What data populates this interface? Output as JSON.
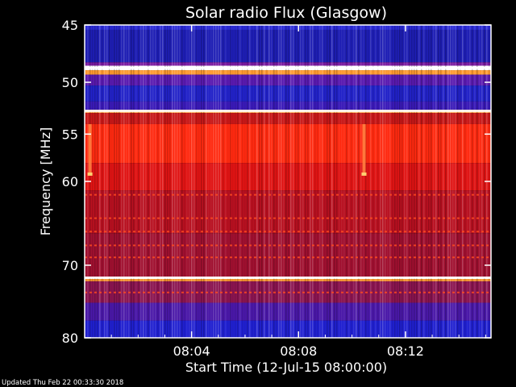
{
  "chart_data": {
    "type": "heatmap",
    "title": "Solar radio Flux (Glasgow)",
    "xlabel": "Start Time (12-Jul-15 08:00:00)",
    "ylabel": "Frequency [MHz]",
    "x_range_minutes": [
      0,
      15.2
    ],
    "x_ticks": [
      {
        "minute": 4,
        "label": "08:04"
      },
      {
        "minute": 8,
        "label": "08:08"
      },
      {
        "minute": 12,
        "label": "08:12"
      }
    ],
    "y_range_mhz": [
      45,
      80
    ],
    "y_scale": "log",
    "y_ticks": [
      {
        "mhz": 45,
        "label": "45"
      },
      {
        "mhz": 50,
        "label": "50"
      },
      {
        "mhz": 55,
        "label": "55"
      },
      {
        "mhz": 60,
        "label": "60"
      },
      {
        "mhz": 70,
        "label": "70"
      },
      {
        "mhz": 80,
        "label": "80"
      }
    ],
    "bands": [
      {
        "from_mhz": 45.0,
        "to_mhz": 45.4,
        "color": "#2b2bd8"
      },
      {
        "from_mhz": 45.4,
        "to_mhz": 48.2,
        "color": "#1e1eb4"
      },
      {
        "from_mhz": 48.2,
        "to_mhz": 48.5,
        "color": "#7a1aa0"
      },
      {
        "from_mhz": 48.5,
        "to_mhz": 48.9,
        "color": "#ffffff"
      },
      {
        "from_mhz": 48.9,
        "to_mhz": 49.3,
        "color": "#ff9a30"
      },
      {
        "from_mhz": 49.3,
        "to_mhz": 50.3,
        "color": "#5a1ab0"
      },
      {
        "from_mhz": 50.3,
        "to_mhz": 51.8,
        "color": "#2222c8"
      },
      {
        "from_mhz": 51.8,
        "to_mhz": 52.6,
        "color": "#3a1ab8"
      },
      {
        "from_mhz": 52.6,
        "to_mhz": 52.9,
        "color": "#ffb060"
      },
      {
        "from_mhz": 52.9,
        "to_mhz": 54.0,
        "color": "#c81818"
      },
      {
        "from_mhz": 54.0,
        "to_mhz": 58.0,
        "color": "#ff2a10"
      },
      {
        "from_mhz": 58.0,
        "to_mhz": 61.0,
        "color": "#e01414"
      },
      {
        "from_mhz": 61.0,
        "to_mhz": 66.0,
        "color": "#b81020"
      },
      {
        "from_mhz": 66.0,
        "to_mhz": 71.5,
        "color": "#a01030"
      },
      {
        "from_mhz": 71.5,
        "to_mhz": 71.8,
        "color": "#ffffff"
      },
      {
        "from_mhz": 71.8,
        "to_mhz": 72.1,
        "color": "#ff9a30"
      },
      {
        "from_mhz": 72.1,
        "to_mhz": 75.0,
        "color": "#8a1450"
      },
      {
        "from_mhz": 75.0,
        "to_mhz": 77.5,
        "color": "#4a18a8"
      },
      {
        "from_mhz": 77.5,
        "to_mhz": 80.0,
        "color": "#2020d0"
      }
    ],
    "bright_lines_mhz": [
      48.7,
      52.7,
      71.6
    ],
    "interference_lines_mhz": [
      61.5,
      64.2,
      65.8,
      67.5,
      69.0,
      73.6
    ],
    "burst_features": [
      {
        "minute": 0.2,
        "from_mhz": 54.0,
        "to_mhz": 59.2
      },
      {
        "minute": 10.45,
        "from_mhz": 54.0,
        "to_mhz": 59.2
      }
    ],
    "colors": {
      "background": "#000000",
      "axis": "#ffffff"
    }
  },
  "footer": {
    "updated": "Updated Thu Feb 22 00:33:30 2018"
  }
}
